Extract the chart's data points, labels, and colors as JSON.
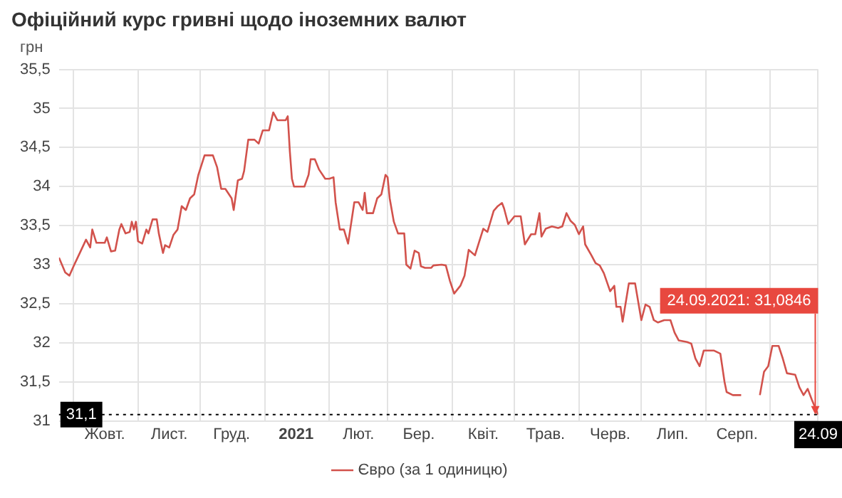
{
  "chart_data": {
    "type": "line",
    "title": "Офіційний курс гривні щодо іноземних валют",
    "ylabel": "грн",
    "x": [
      "2020-09-24",
      "2020-09-27",
      "2020-09-29",
      "2020-10-01",
      "2020-10-04",
      "2020-10-07",
      "2020-10-09",
      "2020-10-10",
      "2020-10-12",
      "2020-10-16",
      "2020-10-17",
      "2020-10-19",
      "2020-10-21",
      "2020-10-23",
      "2020-10-24",
      "2020-10-26",
      "2020-10-28",
      "2020-10-29",
      "2020-10-30",
      "2020-10-31",
      "2020-11-01",
      "2020-11-03",
      "2020-11-05",
      "2020-11-06",
      "2020-11-08",
      "2020-11-10",
      "2020-11-11",
      "2020-11-13",
      "2020-11-14",
      "2020-11-16",
      "2020-11-18",
      "2020-11-20",
      "2020-11-22",
      "2020-11-24",
      "2020-11-26",
      "2020-11-28",
      "2020-11-30",
      "2020-12-03",
      "2020-12-07",
      "2020-12-09",
      "2020-12-11",
      "2020-12-13",
      "2020-12-16",
      "2020-12-17",
      "2020-12-19",
      "2020-12-21",
      "2020-12-22",
      "2020-12-24",
      "2020-12-27",
      "2020-12-29",
      "2020-12-31",
      "2021-01-03",
      "2021-01-05",
      "2021-01-07",
      "2021-01-11",
      "2021-01-12",
      "2021-01-13",
      "2021-01-14",
      "2021-01-15",
      "2021-01-20",
      "2021-01-22",
      "2021-01-23",
      "2021-01-25",
      "2021-01-27",
      "2021-01-30",
      "2021-02-01",
      "2021-02-03",
      "2021-02-04",
      "2021-02-06",
      "2021-02-08",
      "2021-02-10",
      "2021-02-13",
      "2021-02-15",
      "2021-02-17",
      "2021-02-18",
      "2021-02-19",
      "2021-02-22",
      "2021-02-24",
      "2021-02-26",
      "2021-02-28",
      "2021-03-01",
      "2021-03-02",
      "2021-03-04",
      "2021-03-06",
      "2021-03-09",
      "2021-03-10",
      "2021-03-12",
      "2021-03-14",
      "2021-03-16",
      "2021-03-17",
      "2021-03-19",
      "2021-03-22",
      "2021-03-23",
      "2021-03-27",
      "2021-03-29",
      "2021-03-31",
      "2021-04-02",
      "2021-04-05",
      "2021-04-07",
      "2021-04-09",
      "2021-04-12",
      "2021-04-14",
      "2021-04-16",
      "2021-04-18",
      "2021-04-21",
      "2021-04-23",
      "2021-04-25",
      "2021-04-26",
      "2021-04-28",
      "2021-05-01",
      "2021-05-04",
      "2021-05-06",
      "2021-05-09",
      "2021-05-11",
      "2021-05-13",
      "2021-05-14",
      "2021-05-16",
      "2021-05-19",
      "2021-05-22",
      "2021-05-24",
      "2021-05-26",
      "2021-05-28",
      "2021-05-30",
      "2021-06-01",
      "2021-06-03",
      "2021-06-04",
      "2021-06-07",
      "2021-06-09",
      "2021-06-11",
      "2021-06-13",
      "2021-06-16",
      "2021-06-18",
      "2021-06-19",
      "2021-06-21",
      "2021-06-22",
      "2021-06-25",
      "2021-06-28",
      "2021-07-01",
      "2021-07-03",
      "2021-07-05",
      "2021-07-07",
      "2021-07-09",
      "2021-07-12",
      "2021-07-15",
      "2021-07-17",
      "2021-07-19",
      "2021-07-23",
      "2021-07-25",
      "2021-07-27",
      "2021-07-29",
      "2021-07-31",
      "2021-08-03",
      "2021-08-05",
      "2021-08-08",
      "2021-08-10",
      "2021-08-11",
      "2021-08-14",
      "2021-08-18",
      "2021-08-22",
      "2021-08-27",
      "2021-08-29",
      "2021-08-31",
      "2021-09-02",
      "2021-09-05",
      "2021-09-07",
      "2021-09-09",
      "2021-09-13",
      "2021-09-15",
      "2021-09-17",
      "2021-09-19",
      "2021-09-21",
      "2021-09-24"
    ],
    "series": [
      {
        "name": "Євро (за 1 одиницю)",
        "color": "#d2524c",
        "values": [
          33.09,
          32.9,
          32.86,
          32.98,
          33.15,
          33.32,
          33.22,
          33.45,
          33.28,
          33.28,
          33.35,
          33.17,
          33.18,
          33.45,
          33.52,
          33.4,
          33.42,
          33.55,
          33.45,
          33.55,
          33.3,
          33.27,
          33.45,
          33.4,
          33.58,
          33.58,
          33.4,
          33.15,
          33.25,
          33.22,
          33.38,
          33.45,
          33.75,
          33.7,
          33.85,
          33.9,
          34.15,
          34.4,
          34.4,
          34.25,
          33.97,
          33.97,
          33.85,
          33.7,
          34.08,
          34.1,
          34.2,
          34.6,
          34.6,
          34.55,
          34.72,
          34.72,
          34.95,
          34.85,
          34.85,
          34.9,
          34.45,
          34.1,
          34.0,
          34.0,
          34.15,
          34.35,
          34.35,
          34.22,
          34.1,
          34.1,
          34.12,
          33.8,
          33.45,
          33.45,
          33.27,
          33.8,
          33.8,
          33.7,
          33.92,
          33.66,
          33.66,
          33.85,
          33.9,
          34.15,
          34.12,
          33.85,
          33.55,
          33.4,
          33.4,
          33.0,
          32.95,
          33.18,
          33.15,
          32.98,
          32.96,
          32.96,
          32.99,
          33.0,
          32.99,
          32.79,
          32.63,
          32.73,
          32.86,
          33.19,
          33.12,
          33.29,
          33.46,
          33.42,
          33.69,
          33.75,
          33.79,
          33.72,
          33.52,
          33.62,
          33.62,
          33.26,
          33.39,
          33.39,
          33.66,
          33.36,
          33.46,
          33.49,
          33.47,
          33.49,
          33.66,
          33.56,
          33.51,
          33.39,
          33.49,
          33.26,
          33.12,
          33.02,
          32.99,
          32.89,
          32.66,
          32.73,
          32.46,
          32.46,
          32.27,
          32.76,
          32.76,
          32.29,
          32.49,
          32.46,
          32.29,
          32.26,
          32.29,
          32.29,
          32.13,
          32.03,
          32.01,
          31.99,
          31.8,
          31.7,
          31.9,
          31.9,
          31.9,
          31.86,
          31.5,
          31.37,
          31.33,
          31.33,
          null,
          31.33,
          31.63,
          31.7,
          31.96,
          31.96,
          31.8,
          31.61,
          31.59,
          31.43,
          31.33,
          31.41,
          31.27,
          31.08
        ]
      }
    ],
    "xlim": [
      "2020-09-24",
      "2021-09-24"
    ],
    "xticks": [
      {
        "value": "2020-10-01",
        "label": null
      },
      {
        "value": "2020-10-16",
        "label": "Жовт."
      },
      {
        "value": "2020-11-01",
        "label": null
      },
      {
        "value": "2020-11-16",
        "label": "Лист."
      },
      {
        "value": "2020-12-01",
        "label": null
      },
      {
        "value": "2020-12-16",
        "label": "Груд."
      },
      {
        "value": "2021-01-01",
        "label": null
      },
      {
        "value": "2021-01-16",
        "label": "2021"
      },
      {
        "value": "2021-02-01",
        "label": null
      },
      {
        "value": "2021-02-15",
        "label": "Лют."
      },
      {
        "value": "2021-03-01",
        "label": null
      },
      {
        "value": "2021-03-16",
        "label": "Бер."
      },
      {
        "value": "2021-04-01",
        "label": null
      },
      {
        "value": "2021-04-16",
        "label": "Квіт."
      },
      {
        "value": "2021-05-01",
        "label": null
      },
      {
        "value": "2021-05-16",
        "label": "Трав."
      },
      {
        "value": "2021-06-01",
        "label": null
      },
      {
        "value": "2021-06-16",
        "label": "Черв."
      },
      {
        "value": "2021-07-01",
        "label": null
      },
      {
        "value": "2021-07-16",
        "label": "Лип."
      },
      {
        "value": "2021-08-01",
        "label": null
      },
      {
        "value": "2021-08-16",
        "label": "Серп."
      },
      {
        "value": "2021-09-01",
        "label": null
      },
      {
        "value": "2021-09-24",
        "label": "24.09"
      }
    ],
    "ylim": [
      31,
      35.5
    ],
    "yticks": [
      31,
      {
        "value": 31.5,
        "label": "31,5"
      },
      32,
      {
        "value": 32.5,
        "label": "32,5"
      },
      33,
      {
        "value": 33.5,
        "label": "33,5"
      },
      34,
      {
        "value": 34.5,
        "label": "34,5"
      },
      35,
      {
        "value": 35.5,
        "label": "35,5"
      }
    ],
    "grid": true,
    "legend": "bottom",
    "marker": "none",
    "line_style": "solid",
    "ref_lines": [
      {
        "axis": "y",
        "value": 31.08,
        "label": "31,1",
        "line_style": "dotted",
        "color": "#000000"
      }
    ],
    "annotations": [
      {
        "text": "24.09.2021: 31,0846",
        "x": "2021-09-24",
        "y": 31.08
      }
    ]
  }
}
